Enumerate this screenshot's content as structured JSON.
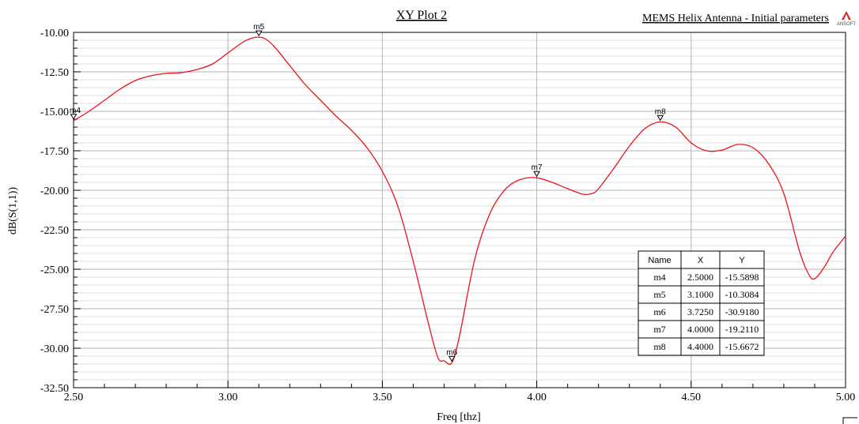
{
  "chart_data": {
    "type": "line",
    "title": "XY Plot 2",
    "subtitle": "MEMS Helix Antenna - Initial parameters",
    "logo_text": "ANSOFT",
    "xlabel": "Freq [thz]",
    "ylabel": "dB(S(1,1))",
    "xlim": [
      2.5,
      5.0
    ],
    "ylim": [
      -32.5,
      -10.0
    ],
    "xticks": [
      "2.50",
      "3.00",
      "3.50",
      "4.00",
      "4.50",
      "5.00"
    ],
    "yticks": [
      "-10.00",
      "-12.50",
      "-15.00",
      "-17.50",
      "-20.00",
      "-22.50",
      "-25.00",
      "-27.50",
      "-30.00",
      "-32.50"
    ],
    "grid": true,
    "line_color": "#e8141b",
    "series": [
      {
        "x": [
          2.5,
          2.55,
          2.6,
          2.65,
          2.7,
          2.75,
          2.8,
          2.85,
          2.9,
          2.95,
          3.0,
          3.05,
          3.08,
          3.1,
          3.12,
          3.15,
          3.2,
          3.25,
          3.3,
          3.35,
          3.4,
          3.45,
          3.5,
          3.55,
          3.6,
          3.65,
          3.68,
          3.7,
          3.725,
          3.75,
          3.8,
          3.85,
          3.9,
          3.95,
          4.0,
          4.05,
          4.1,
          4.15,
          4.18,
          4.2,
          4.25,
          4.3,
          4.35,
          4.4,
          4.45,
          4.5,
          4.55,
          4.6,
          4.65,
          4.7,
          4.75,
          4.8,
          4.85,
          4.88,
          4.9,
          4.93,
          4.96,
          5.0
        ],
        "y": [
          -15.59,
          -15.0,
          -14.3,
          -13.6,
          -13.05,
          -12.75,
          -12.6,
          -12.55,
          -12.35,
          -12.0,
          -11.3,
          -10.6,
          -10.35,
          -10.31,
          -10.4,
          -10.9,
          -12.1,
          -13.3,
          -14.3,
          -15.3,
          -16.2,
          -17.3,
          -18.8,
          -21.0,
          -24.5,
          -28.5,
          -30.6,
          -30.8,
          -30.92,
          -29.2,
          -24.3,
          -21.4,
          -19.9,
          -19.3,
          -19.21,
          -19.5,
          -19.9,
          -20.25,
          -20.2,
          -19.9,
          -18.6,
          -17.2,
          -16.1,
          -15.67,
          -16.0,
          -17.0,
          -17.5,
          -17.45,
          -17.1,
          -17.3,
          -18.3,
          -20.2,
          -23.8,
          -25.3,
          -25.6,
          -24.9,
          -23.9,
          -22.9
        ]
      }
    ],
    "markers": [
      {
        "name": "m4",
        "x": 2.5,
        "y": -15.5898
      },
      {
        "name": "m5",
        "x": 3.1,
        "y": -10.3084
      },
      {
        "name": "m6",
        "x": 3.725,
        "y": -30.918
      },
      {
        "name": "m7",
        "x": 4.0,
        "y": -19.211
      },
      {
        "name": "m8",
        "x": 4.4,
        "y": -15.6672
      }
    ],
    "marker_table": {
      "headers": [
        "Name",
        "X",
        "Y"
      ],
      "rows": [
        [
          "m4",
          "2.5000",
          "-15.5898"
        ],
        [
          "m5",
          "3.1000",
          "-10.3084"
        ],
        [
          "m6",
          "3.7250",
          "-30.9180"
        ],
        [
          "m7",
          "4.0000",
          "-19.2110"
        ],
        [
          "m8",
          "4.4000",
          "-15.6672"
        ]
      ]
    }
  }
}
